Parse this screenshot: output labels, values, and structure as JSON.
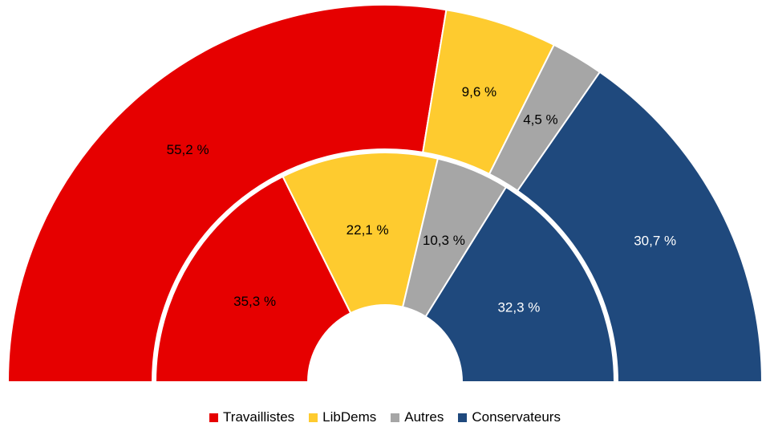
{
  "chart_data": {
    "type": "pie",
    "subtype": "nested-semicircle",
    "categories": [
      "Travaillistes",
      "LibDems",
      "Autres",
      "Conservateurs"
    ],
    "colors": [
      "#e60000",
      "#fecb2f",
      "#a6a6a6",
      "#1f497d"
    ],
    "series": [
      {
        "ring": "outer",
        "values": [
          55.2,
          9.6,
          4.5,
          30.7
        ],
        "labels": [
          "55,2 %",
          "9,6 %",
          "4,5 %",
          "30,7 %"
        ]
      },
      {
        "ring": "inner",
        "values": [
          35.3,
          22.1,
          10.3,
          32.3
        ],
        "labels": [
          "35,3 %",
          "22,1 %",
          "10,3 %",
          "32,3 %"
        ]
      }
    ],
    "legend": {
      "position": "bottom",
      "entries": [
        "Travaillistes",
        "LibDems",
        "Autres",
        "Conservateurs"
      ]
    },
    "label_colors": [
      "#000000",
      "#000000",
      "#000000",
      "#ffffff"
    ]
  }
}
